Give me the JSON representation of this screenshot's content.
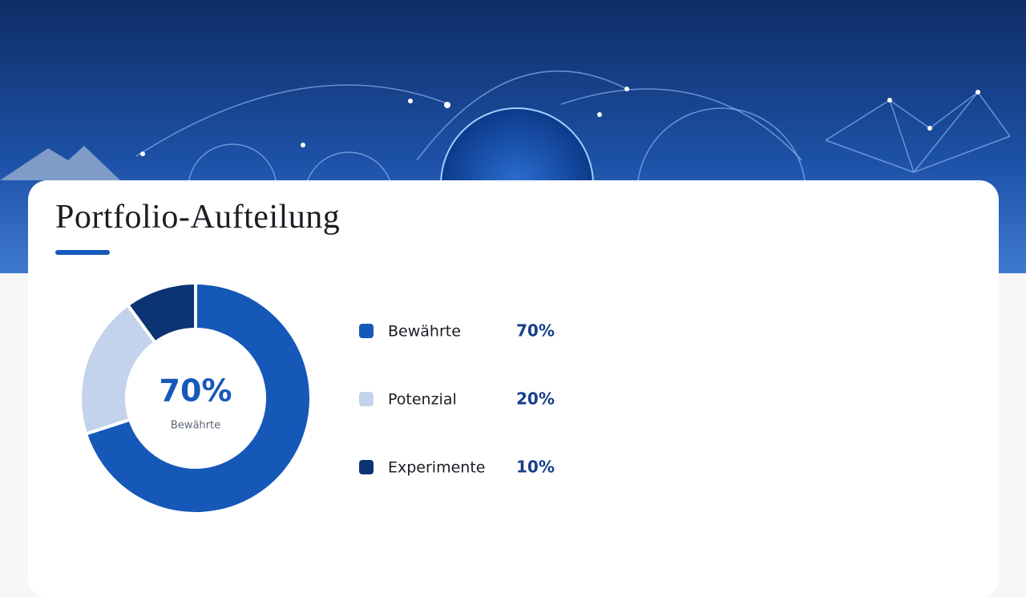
{
  "chart_data": {
    "type": "donut",
    "title": "Portfolio-Aufteilung",
    "categories": [
      "Bewährte",
      "Potenzial",
      "Experimente"
    ],
    "values": [
      70,
      20,
      10
    ],
    "value_labels": [
      "70%",
      "20%",
      "10%"
    ],
    "colors": [
      "#1558b8",
      "#c4d3ec",
      "#0c3474"
    ]
  }
}
